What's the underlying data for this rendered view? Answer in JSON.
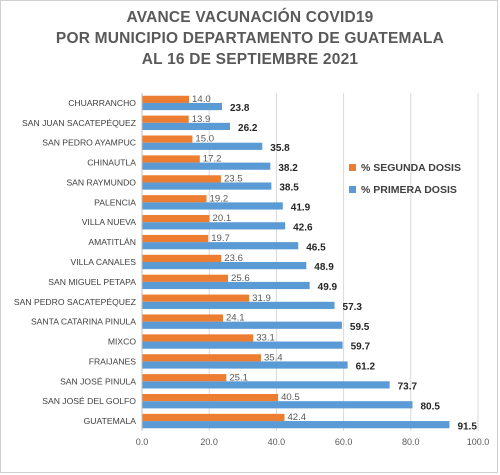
{
  "chart_data": {
    "type": "bar",
    "orientation": "horizontal",
    "title_lines": [
      "AVANCE VACUNACIÓN COVID19",
      "POR MUNICIPIO DEPARTAMENTO DE GUATEMALA",
      "AL 16 DE SEPTIEMBRE 2021"
    ],
    "categories": [
      "CHUARRANCHO",
      "SAN JUAN SACATEPÉQUEZ",
      "SAN PEDRO AYAMPUC",
      "CHINAUTLA",
      "SAN RAYMUNDO",
      "PALENCIA",
      "VILLA NUEVA",
      "AMATITLÁN",
      "VILLA CANALES",
      "SAN MIGUEL PETAPA",
      "SAN PEDRO SACATEPÉQUEZ",
      "SANTA CATARINA PINULA",
      "MIXCO",
      "FRAIJANES",
      "SAN JOSÉ PINULA",
      "SAN JOSÉ DEL GOLFO",
      "GUATEMALA"
    ],
    "series": [
      {
        "name": "% SEGUNDA DOSIS",
        "color": "#ED7D31",
        "values": [
          14.0,
          13.9,
          15.0,
          17.2,
          23.5,
          19.2,
          20.1,
          19.7,
          23.6,
          25.6,
          31.9,
          24.1,
          33.1,
          35.4,
          25.1,
          40.5,
          42.4
        ],
        "labels": [
          "14.0",
          "13.9",
          "15.0",
          "17.2",
          "23.5",
          "19.2",
          "20.1",
          "19.7",
          "23.6",
          "25.6",
          "31.9",
          "24.1",
          "33.1",
          "35.4",
          "25.1",
          "40.5",
          "42.4"
        ]
      },
      {
        "name": "% PRIMERA DOSIS",
        "color": "#5B9BD5",
        "values": [
          23.8,
          26.2,
          35.8,
          38.2,
          38.5,
          41.9,
          42.6,
          46.5,
          48.9,
          49.9,
          57.3,
          59.5,
          59.7,
          61.2,
          73.7,
          80.5,
          91.5
        ],
        "labels": [
          "23.8",
          "26.2",
          "35.8",
          "38.2",
          "38.5",
          "41.9",
          "42.6",
          "46.5",
          "48.9",
          "49.9",
          "57.3",
          "59.5",
          "59.7",
          "61.2",
          "73.7",
          "80.5",
          "91.5"
        ]
      }
    ],
    "x_ticks": [
      "0.0",
      "20.0",
      "40.0",
      "60.0",
      "80.0",
      "100.0"
    ],
    "xlim": [
      0,
      100
    ],
    "grid": true,
    "legend_position": "right"
  }
}
